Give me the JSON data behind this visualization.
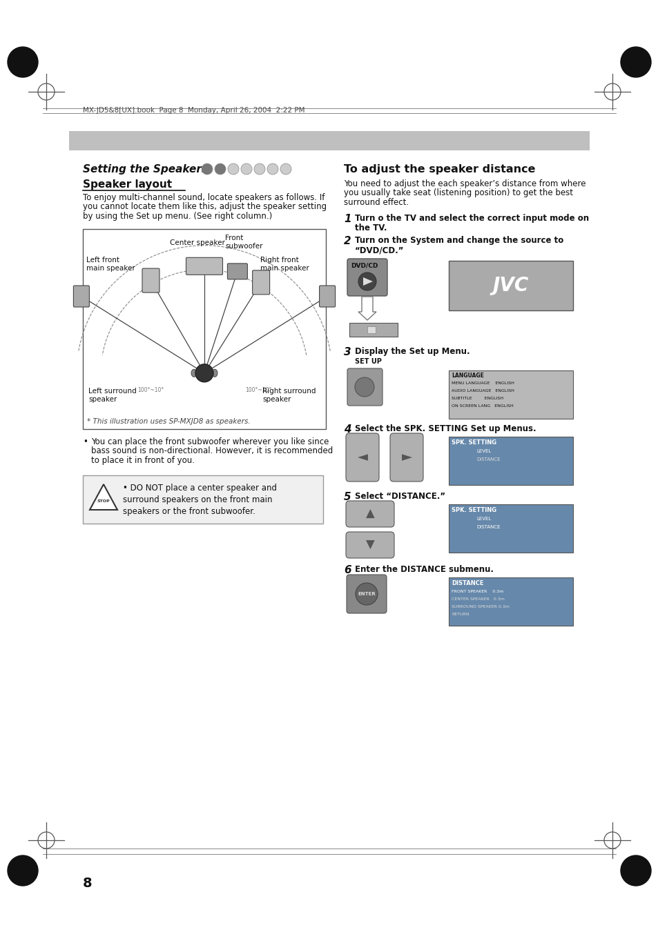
{
  "page_bg": "#ffffff",
  "header_text": "MX-JD5&8[UX].book  Page 8  Monday, April 26, 2004  2:22 PM",
  "title_section": "Setting the Speakers",
  "subtitle_layout": "Speaker layout",
  "layout_body_l1": "To enjoy multi-channel sound, locate speakers as follows. If",
  "layout_body_l2": "you cannot locate them like this, adjust the speaker setting",
  "layout_body_l3": "by using the Set up menu. (See right column.)",
  "right_title": "To adjust the speaker distance",
  "right_body_l1": "You need to adjust the each speaker’s distance from where",
  "right_body_l2": "you usually take seat (listening position) to get the best",
  "right_body_l3": "surround effect.",
  "step1_l1": "Turn o the TV and select the correct input mode on",
  "step1_l2": "the TV.",
  "step2_l1": "Turn on the System and change the source to",
  "step2_l2": "“DVD/CD.”",
  "step3": "Display the Set up Menu.",
  "step3_label": "SET UP",
  "step4": "Select the SPK. SETTING Set up Menus.",
  "step5": "Select “DISTANCE.”",
  "step6": "Enter the DISTANCE submenu.",
  "bullet_l1": "You can place the front subwoofer wherever you like since",
  "bullet_l2": "bass sound is non-directional. However, it is recommended",
  "bullet_l3": "to place it in front of you.",
  "stop_l1": "• DO NOT place a center speaker and",
  "stop_l2": "surround speakers on the front main",
  "stop_l3": "speakers or the front subwoofer.",
  "footnote": "* This illustration uses SP-MXJD8 as speakers.",
  "page_number": "8",
  "gray_bar": "#c0bfbf",
  "diag_lbl_front": "Front",
  "diag_lbl_sub": "subwoofer",
  "diag_lbl_center": "Center speaker",
  "diag_lbl_lf": "Left front",
  "diag_lbl_lf2": "main speaker",
  "diag_lbl_rf": "Right front",
  "diag_lbl_rf2": "main speaker",
  "diag_lbl_ls": "Left surround",
  "diag_lbl_ls2": "speaker",
  "diag_lbl_rs": "Right surround",
  "diag_lbl_rs2": "speaker",
  "jvc_text": "JVC",
  "dvd_label": "DVD/CD",
  "enter_label": "ENTER"
}
